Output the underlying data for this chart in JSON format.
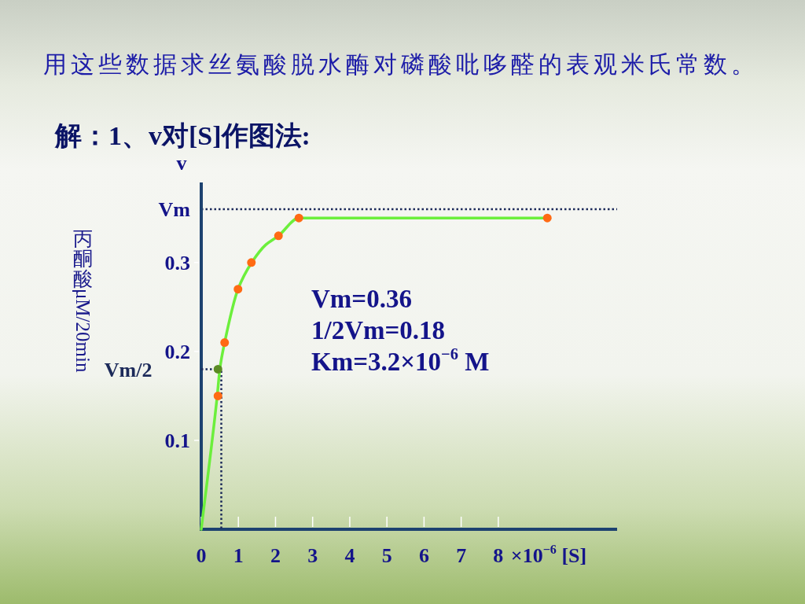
{
  "chart_data": {
    "type": "scatter",
    "title": "用这些数据求丝氨酸脱水酶对磷酸吡哆醛的表观米氏常数。",
    "subtitle": "解：1、v对[S]作图法:",
    "xlabel": "×10$^{−6}$ [S]",
    "ylabel": "丙酮酸μM/20min",
    "annotations": [
      "v",
      "Vm=0.36",
      "1/2Vm=0.18",
      "Km=3.2×10$^{−6}$ M"
    ],
    "xlim": [
      0,
      11.2
    ],
    "ylim": [
      0,
      0.39
    ],
    "xticks": [
      0,
      1,
      2,
      3,
      4,
      5,
      6,
      7,
      8
    ],
    "yticks": [
      0.1,
      0.2,
      0.3
    ],
    "marker": "circle",
    "ref_lines": [
      {
        "axis": "y",
        "value": 0.36,
        "label": "Vm",
        "color": "#1c2a5a",
        "line_style": "dotted"
      }
    ],
    "series": [
      {
        "type": "line",
        "name": "Vm/2",
        "marker": "none",
        "line_style": "dotted",
        "color": "#1c2a5a",
        "x": [
          0,
          0.54,
          0.54
        ],
        "values": [
          0.18,
          0.18,
          0
        ]
      },
      {
        "type": "line",
        "marker": "none",
        "color": "#6cef3c",
        "x": [
          0,
          0.43,
          0.5,
          0.63,
          0.99,
          1.36,
          1.74,
          2.08,
          2.63,
          3.69,
          9.38
        ],
        "values": [
          0,
          0.15,
          0.18,
          0.21,
          0.27,
          0.3,
          0.32,
          0.33,
          0.35,
          0.35,
          0.35
        ]
      },
      {
        "color": "#ff6a13",
        "x": [
          0.45,
          0.63,
          0.99,
          1.35,
          2.08,
          2.63,
          9.32
        ],
        "values": [
          0.15,
          0.21,
          0.27,
          0.3,
          0.33,
          0.35,
          0.35
        ]
      },
      {
        "color": "#5b8a24",
        "x": [
          0.45
        ],
        "values": [
          0.18
        ]
      }
    ]
  }
}
